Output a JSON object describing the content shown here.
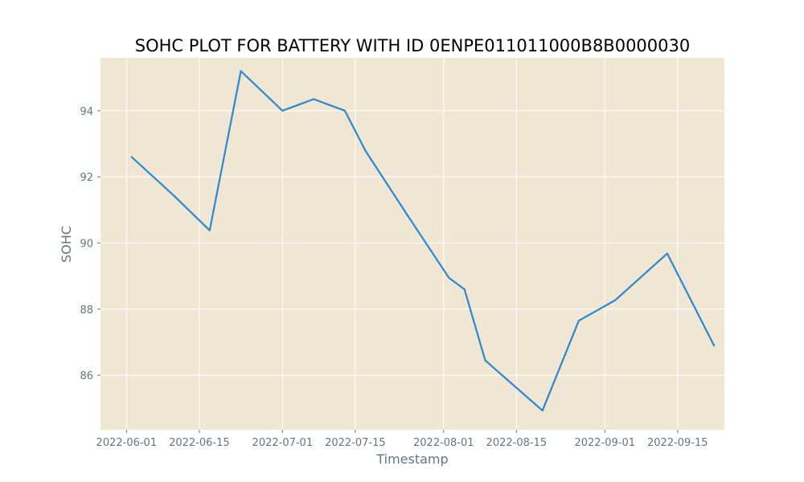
{
  "chart_data": {
    "type": "line",
    "title": "SOHC PLOT FOR BATTERY WITH ID 0ENPE011011000B8B0000030",
    "xlabel": "Timestamp",
    "ylabel": "SOHC",
    "x_tick_labels": [
      "2022-06-01",
      "2022-06-15",
      "2022-07-01",
      "2022-07-15",
      "2022-08-01",
      "2022-08-15",
      "2022-09-01",
      "2022-09-15"
    ],
    "y_ticks": [
      86,
      88,
      90,
      92,
      94
    ],
    "xlim": [
      "2022-05-27",
      "2022-09-24"
    ],
    "ylim": [
      84.35,
      95.6
    ],
    "grid": true,
    "colors": {
      "background": "#efe7d4",
      "grid": "#ffffff",
      "line": "#2b88d0"
    },
    "series": [
      {
        "x": [
          "2022-06-02",
          "2022-06-10",
          "2022-06-17",
          "2022-06-23",
          "2022-07-01",
          "2022-07-07",
          "2022-07-13",
          "2022-07-17",
          "2022-07-25",
          "2022-08-02",
          "2022-08-05",
          "2022-08-09",
          "2022-08-20",
          "2022-08-27",
          "2022-09-03",
          "2022-09-13",
          "2022-09-22"
        ],
        "y": [
          92.6,
          91.45,
          90.38,
          95.2,
          94.0,
          94.35,
          94.0,
          92.78,
          90.85,
          88.95,
          88.6,
          86.45,
          84.93,
          87.65,
          88.27,
          89.68,
          86.9
        ]
      }
    ]
  }
}
